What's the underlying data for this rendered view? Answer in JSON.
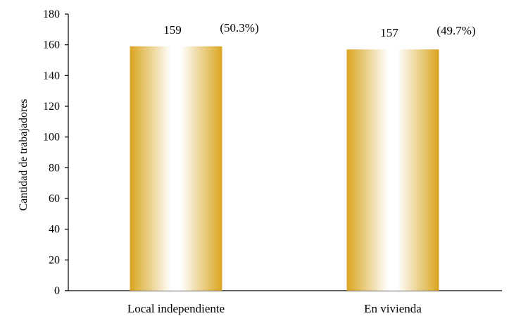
{
  "chart_data": {
    "type": "bar",
    "title": "",
    "xlabel": "",
    "ylabel": "Cantidad de trabajadores",
    "categories": [
      "Local independiente",
      "En vivienda"
    ],
    "values": [
      159,
      157
    ],
    "value_labels": [
      "159",
      "157"
    ],
    "percent_labels": [
      "(50.3%)",
      "(49.7%)"
    ],
    "ylim": [
      0,
      180
    ],
    "yticks": [
      0,
      20,
      40,
      60,
      80,
      100,
      120,
      140,
      160,
      180
    ],
    "grid": false,
    "legend": "none",
    "colors": {
      "bar_edge": "#d9a520",
      "bar_mid": "#ffffff",
      "axis": "#000000"
    }
  }
}
